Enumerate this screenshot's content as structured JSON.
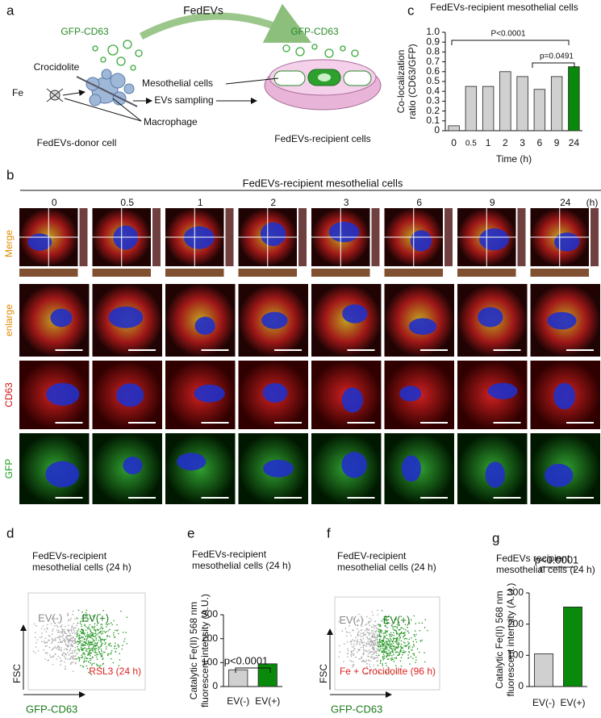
{
  "panel_labels": [
    "a",
    "b",
    "c",
    "d",
    "e",
    "f",
    "g"
  ],
  "diagram": {
    "fedevs": "FedEVs",
    "gfp_left": "GFP-CD63",
    "gfp_right": "GFP-CD63",
    "crocidolite": "Crocidolite",
    "fe": "Fe",
    "mesothelial": "Mesothelial cells",
    "ev_sampling": "EVs sampling",
    "macrophage": "Macrophage",
    "donor": "FedEVs-donor cell",
    "recipient": "FedEVs-recipient cells"
  },
  "microscopy": {
    "title": "FedEVs-recipient mesothelial cells",
    "times": [
      "0",
      "0.5",
      "1",
      "2",
      "3",
      "6",
      "9",
      "24"
    ],
    "unit": "(h)",
    "rows": [
      "Merge",
      "enlarge",
      "CD63",
      "GFP"
    ]
  },
  "flow_panels": [
    {
      "title": "FedEVs-recipient\nmesothelial cells (24 h)",
      "negative": "EV(-)",
      "positive": "EV(+)",
      "treatment": "RSL3 (24 h)",
      "y_axis": "FSC",
      "x_axis": "GFP-CD63"
    },
    {
      "title": "FedEV-recipient\nmesothelial cells (24 h)",
      "negative": "EV(-)",
      "positive": "EV(+)",
      "treatment": "Fe + Crocidolite (96 h)",
      "y_axis": "FSC",
      "x_axis": "GFP-CD63"
    }
  ],
  "chart_data": [
    {
      "type": "bar",
      "title": "FedEVs-recipient mesothelial cells",
      "categories": [
        "0",
        "0.5",
        "1",
        "2",
        "3",
        "6",
        "9",
        "24"
      ],
      "values": [
        0.05,
        0.45,
        0.45,
        0.6,
        0.55,
        0.42,
        0.55,
        0.65
      ],
      "colors": [
        "#d0d0d0",
        "#d0d0d0",
        "#d0d0d0",
        "#d0d0d0",
        "#d0d0d0",
        "#d0d0d0",
        "#d0d0d0",
        "#0a8a0a"
      ],
      "ylim": [
        0,
        1
      ],
      "yticks": [
        0,
        0.1,
        0.2,
        0.3,
        0.4,
        0.5,
        0.6,
        0.7,
        0.8,
        0.9,
        {
          "value": 1,
          "label": "1.0"
        }
      ],
      "ylabel": "Co-localization\nratio (CD63/GFP)",
      "xlabel": "Time (h)",
      "annotations": [
        "P<0.0001",
        "p=0.0491"
      ]
    },
    {
      "type": "bar",
      "title": "FedEVs-recipient\nmesothelial cells (24 h)",
      "categories": [
        "EV(-)",
        "EV(+)"
      ],
      "values": [
        70,
        95
      ],
      "colors": [
        "#d0d0d0",
        "#0a8a0a"
      ],
      "ylim": [
        0,
        300
      ],
      "yticks": [
        0,
        100,
        200,
        300
      ],
      "ylabel": "Catalytic Fe(II) 568 nm\nfluorescent intensity (A.U.)",
      "annotations": [
        "p<0.0001"
      ]
    },
    {
      "type": "bar",
      "title": "FedEVs recipient\nmesothelial cells (24 h)",
      "categories": [
        "EV(-)",
        "EV(+)"
      ],
      "values": [
        105,
        255
      ],
      "colors": [
        "#d0d0d0",
        "#0a8a0a"
      ],
      "ylim": [
        0,
        300
      ],
      "yticks": [
        0,
        100,
        200,
        300
      ],
      "ylabel": "Catalytic Fe(II) 568 nm\nfluorescent intensity (A.U.)",
      "annotations": [
        "p<0.0001"
      ]
    }
  ]
}
